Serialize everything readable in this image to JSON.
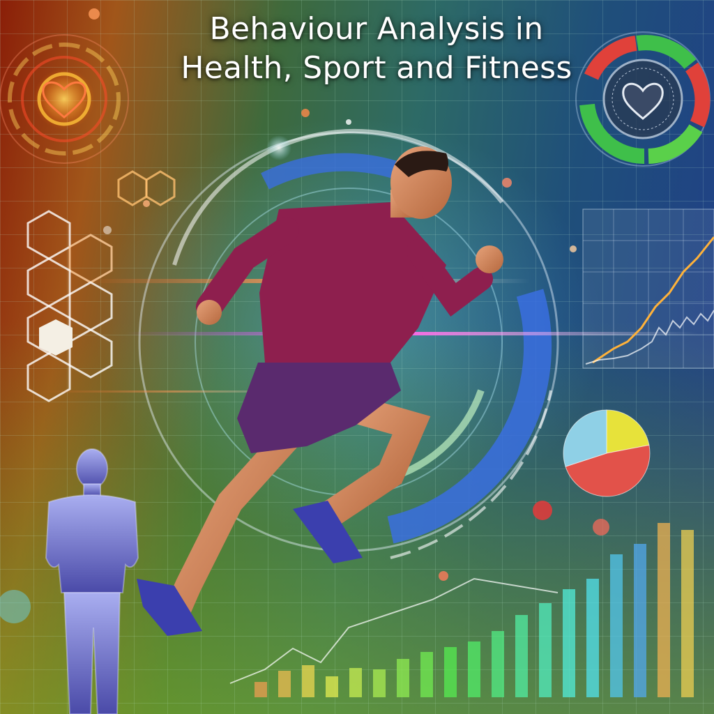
{
  "title": {
    "line1": "Behaviour Analysis in",
    "line2": "Health, Sport and Fitness"
  },
  "illustration": {
    "main_subject": "running-athlete",
    "secondary_subject": "standing-figure",
    "icons": [
      "heart-icon",
      "heart-icon",
      "pie-chart",
      "bar-chart",
      "line-chart",
      "hexagon-network"
    ]
  },
  "colors": {
    "accent_red": "#d8362e",
    "accent_green": "#4cbf3c",
    "accent_yellow": "#e7e23a",
    "accent_blue": "#3a8ed8",
    "shirt": "#8e1f4e",
    "shorts": "#5a2a6e"
  },
  "pie_chart": {
    "slices": [
      {
        "color": "#e7e23a",
        "value": 22
      },
      {
        "color": "#e2524a",
        "value": 48
      },
      {
        "color": "#8fd0e6",
        "value": 30
      }
    ]
  },
  "bar_chart": {
    "values": [
      22,
      38,
      46,
      30,
      42,
      40,
      55,
      65,
      72,
      80,
      95,
      118,
      135,
      155,
      170,
      205,
      220,
      250,
      240
    ]
  }
}
